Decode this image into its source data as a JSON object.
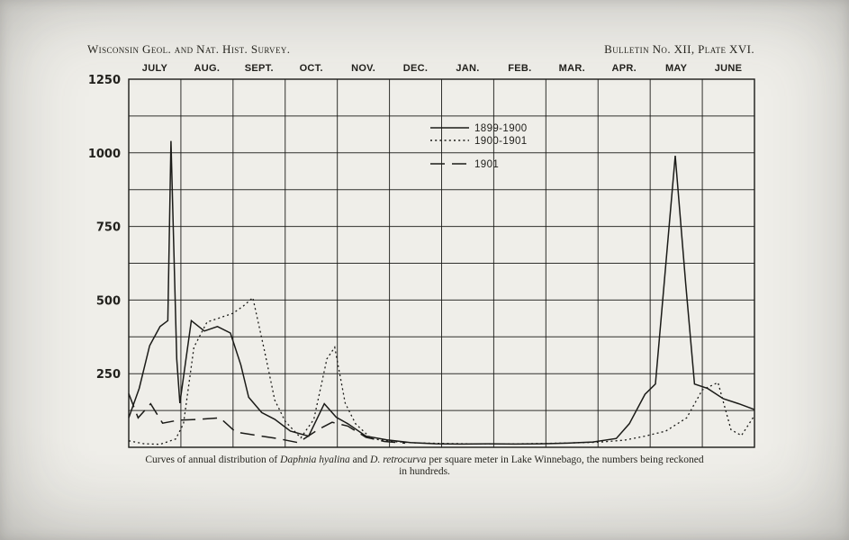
{
  "header": {
    "left": "Wisconsin Geol. and Nat. Hist. Survey.",
    "right": "Bulletin No. XII, Plate XVI."
  },
  "caption": {
    "segments": [
      {
        "text": "Curves of annual distribution of ",
        "italic": false
      },
      {
        "text": "Daphnia hyalina",
        "italic": true
      },
      {
        "text": " and ",
        "italic": false
      },
      {
        "text": "D. retrocurva",
        "italic": true
      },
      {
        "text": " per square meter in Lake Winnebago, the numbers being reckoned",
        "italic": false
      }
    ],
    "line2": "in hundreds."
  },
  "colors": {
    "ink": "#1b1b18",
    "paper": "#efeee9"
  },
  "chart_data": {
    "type": "line",
    "title": "",
    "xlabel": "",
    "ylabel": "",
    "x_axis": {
      "months": [
        "JULY",
        "AUG.",
        "SEPT.",
        "OCT.",
        "NOV.",
        "DEC.",
        "JAN.",
        "FEB.",
        "MAR.",
        "APR.",
        "MAY",
        "JUNE"
      ],
      "range_months": [
        0,
        12
      ]
    },
    "y_axis": {
      "ticks": [
        250,
        500,
        750,
        1000,
        1250
      ],
      "range": [
        0,
        1250
      ],
      "minor_step": 125
    },
    "grid": true,
    "legend": {
      "position": "inside-top-center",
      "entries": [
        "1899-1900",
        "1900-1901",
        "1901"
      ]
    },
    "series": [
      {
        "name": "1899-1900",
        "style": "solid",
        "points": [
          [
            0,
            100
          ],
          [
            0.2,
            200
          ],
          [
            0.4,
            345
          ],
          [
            0.6,
            410
          ],
          [
            0.75,
            430
          ],
          [
            0.81,
            1040
          ],
          [
            0.92,
            300
          ],
          [
            0.98,
            150
          ],
          [
            1.2,
            430
          ],
          [
            1.45,
            395
          ],
          [
            1.7,
            410
          ],
          [
            1.95,
            388
          ],
          [
            2.15,
            280
          ],
          [
            2.3,
            170
          ],
          [
            2.55,
            118
          ],
          [
            2.8,
            95
          ],
          [
            3.1,
            55
          ],
          [
            3.45,
            38
          ],
          [
            3.75,
            148
          ],
          [
            3.98,
            102
          ],
          [
            4.2,
            80
          ],
          [
            4.55,
            38
          ],
          [
            4.95,
            25
          ],
          [
            5.4,
            16
          ],
          [
            5.9,
            12
          ],
          [
            6.4,
            11
          ],
          [
            6.9,
            12
          ],
          [
            7.4,
            11
          ],
          [
            7.9,
            12
          ],
          [
            8.4,
            14
          ],
          [
            8.9,
            18
          ],
          [
            9.35,
            30
          ],
          [
            9.6,
            80
          ],
          [
            9.9,
            180
          ],
          [
            10.1,
            215
          ],
          [
            10.48,
            990
          ],
          [
            10.68,
            560
          ],
          [
            10.85,
            215
          ],
          [
            11.1,
            200
          ],
          [
            11.4,
            165
          ],
          [
            11.7,
            148
          ],
          [
            12,
            128
          ]
        ]
      },
      {
        "name": "1900-1901",
        "style": "dotted",
        "points": [
          [
            0,
            22
          ],
          [
            0.3,
            12
          ],
          [
            0.6,
            10
          ],
          [
            0.9,
            28
          ],
          [
            1.05,
            80
          ],
          [
            1.25,
            340
          ],
          [
            1.5,
            425
          ],
          [
            1.75,
            440
          ],
          [
            2.0,
            455
          ],
          [
            2.2,
            480
          ],
          [
            2.38,
            508
          ],
          [
            2.6,
            330
          ],
          [
            2.8,
            160
          ],
          [
            3.0,
            88
          ],
          [
            3.3,
            32
          ],
          [
            3.55,
            95
          ],
          [
            3.8,
            300
          ],
          [
            3.95,
            340
          ],
          [
            4.15,
            150
          ],
          [
            4.35,
            80
          ],
          [
            4.65,
            30
          ],
          [
            5.0,
            20
          ],
          [
            5.5,
            15
          ],
          [
            6.0,
            13
          ],
          [
            6.5,
            12
          ],
          [
            7.0,
            12
          ],
          [
            7.5,
            12
          ],
          [
            8.0,
            13
          ],
          [
            8.5,
            15
          ],
          [
            9.0,
            17
          ],
          [
            9.5,
            24
          ],
          [
            9.9,
            38
          ],
          [
            10.3,
            55
          ],
          [
            10.7,
            100
          ],
          [
            11.0,
            195
          ],
          [
            11.3,
            220
          ],
          [
            11.55,
            60
          ],
          [
            11.75,
            40
          ],
          [
            12,
            108
          ]
        ]
      },
      {
        "name": "1901",
        "style": "dash",
        "points": [
          [
            0,
            182
          ],
          [
            0.18,
            100
          ],
          [
            0.42,
            148
          ],
          [
            0.65,
            82
          ],
          [
            0.95,
            92
          ],
          [
            1.35,
            95
          ],
          [
            1.75,
            100
          ],
          [
            2.05,
            52
          ],
          [
            2.4,
            42
          ],
          [
            2.85,
            30
          ],
          [
            3.25,
            16
          ],
          [
            3.65,
            62
          ],
          [
            3.9,
            85
          ],
          [
            4.2,
            72
          ],
          [
            4.55,
            34
          ],
          [
            4.9,
            20
          ],
          [
            5.3,
            14
          ]
        ]
      }
    ]
  }
}
